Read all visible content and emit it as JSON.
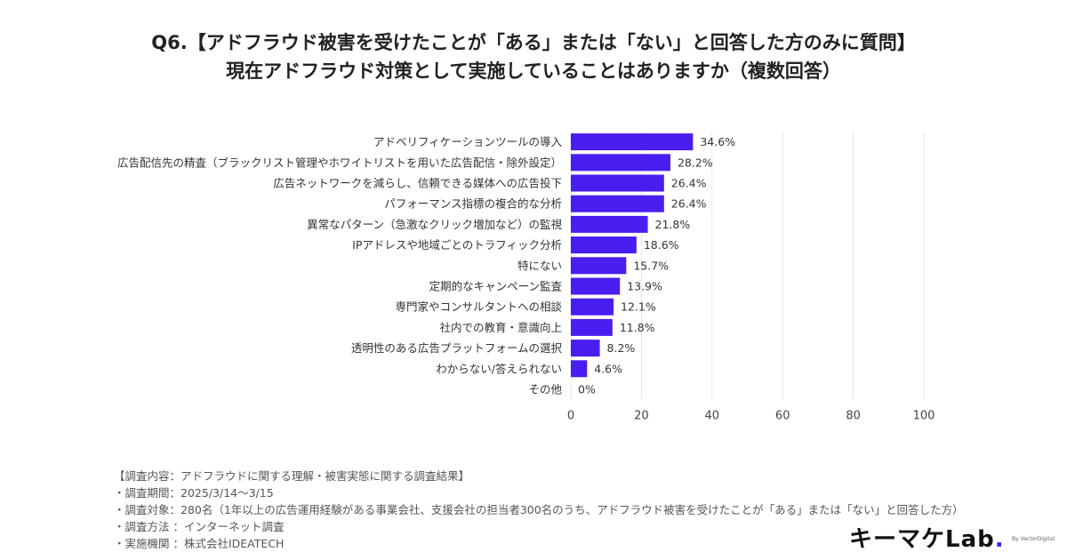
{
  "title": {
    "line1": "Q6.【アドフラウド被害を受けたことが「ある」または「ない」と回答した方のみに質問】",
    "line2": "現在アドフラウド対策として実施していることはありますか（複数回答）"
  },
  "chart_data": {
    "type": "bar",
    "orientation": "horizontal",
    "categories": [
      "アドベリフィケーションツールの導入",
      "広告配信先の精査（ブラックリスト管理やホワイトリストを用いた広告配信・除外設定）",
      "広告ネットワークを減らし、信頼できる媒体への広告投下",
      "パフォーマンス指標の複合的な分析",
      "異常なパターン（急激なクリック増加など）の監視",
      "IPアドレスや地域ごとのトラフィック分析",
      "特にない",
      "定期的なキャンペーン監査",
      "専門家やコンサルタントへの相談",
      "社内での教育・意識向上",
      "透明性のある広告プラットフォームの選択",
      "わからない/答えられない",
      "その他"
    ],
    "values": [
      34.6,
      28.2,
      26.4,
      26.4,
      21.8,
      18.6,
      15.7,
      13.9,
      12.1,
      11.8,
      8.2,
      4.6,
      0
    ],
    "value_labels": [
      "34.6%",
      "28.2%",
      "26.4%",
      "26.4%",
      "21.8%",
      "18.6%",
      "15.7%",
      "13.9%",
      "12.1%",
      "11.8%",
      "8.2%",
      "4.6%",
      "0%"
    ],
    "xlim": [
      0,
      100
    ],
    "x_ticks": [
      0,
      20,
      40,
      60,
      80,
      100
    ],
    "x_tick_labels": [
      "0",
      "20",
      "40",
      "60",
      "80",
      "100"
    ],
    "bar_color": "#4A1DF0",
    "grid": true
  },
  "notes": [
    "【調査内容：アドフラウドに関する理解・被害実態に関する調査結果】",
    "・調査期間：2025/3/14〜3/15",
    "・調査対象：280名（1年以上の広告運用経験がある事業会社、支援会社の担当者300名のうち、アドフラウド被害を受けたことが「ある」または「ない」と回答した方）",
    "・調査方法 ：インターネット調査",
    "・実施機関 ：株式会社IDEATECH"
  ],
  "logo": {
    "text": "キーマケLab",
    "sub": "By VectorDigital",
    "accent_color": "#4A1DF0"
  }
}
